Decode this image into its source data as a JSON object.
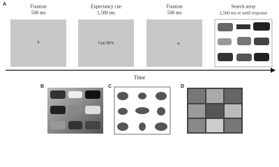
{
  "panel_a": {
    "label": "A",
    "screens": [
      {
        "title": "Fixation",
        "duration": "500 ms",
        "content": "+"
      },
      {
        "title": "Expectancy cue",
        "duration": "1,500 ms",
        "content": "Gun 90%"
      },
      {
        "title": "Fixation",
        "duration": "500 ms",
        "content": "+"
      },
      {
        "title": "Search array",
        "duration": "2,500 ms or until response"
      }
    ],
    "axis_label": "Time"
  },
  "panels": [
    {
      "label": "B"
    },
    {
      "label": "C"
    },
    {
      "label": "D"
    }
  ]
}
